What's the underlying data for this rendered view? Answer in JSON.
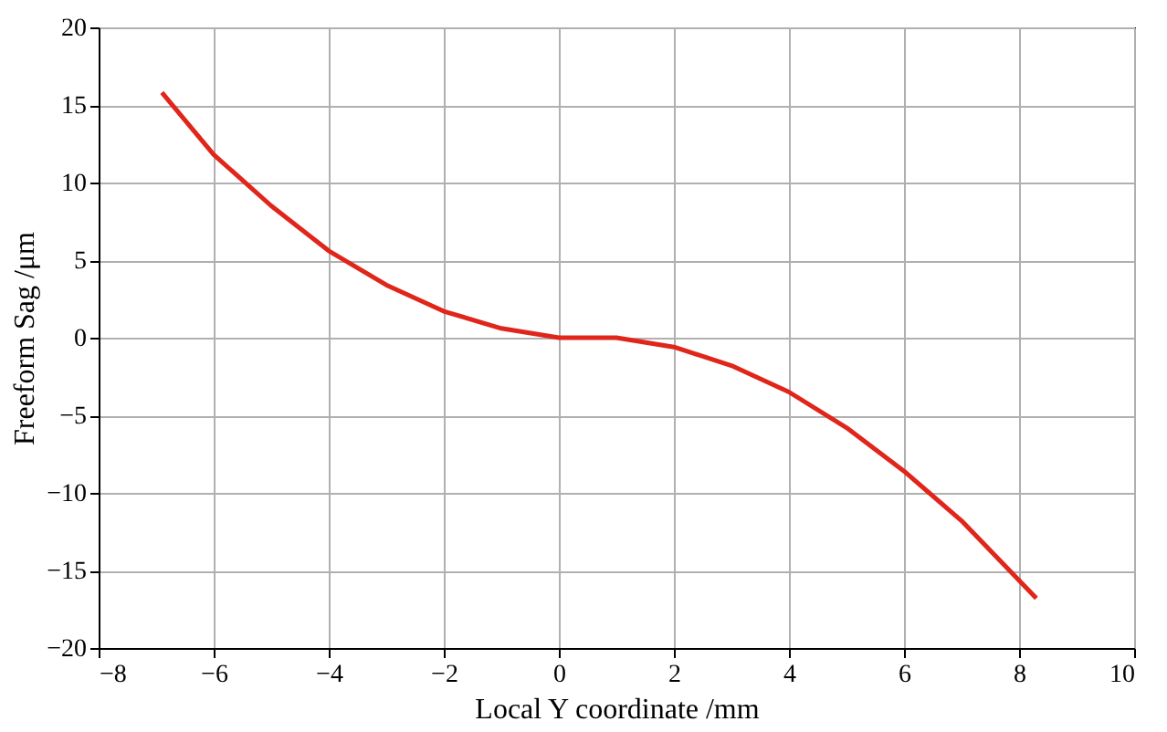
{
  "chart_data": {
    "type": "line",
    "xlabel": "Local Y coordinate /mm",
    "ylabel": "Freeform Sag /μm",
    "x": [
      -6.9,
      -6,
      -5,
      -4,
      -3,
      -2,
      -1,
      0,
      1,
      2,
      3,
      4,
      5,
      6,
      7,
      8.3
    ],
    "series": [
      {
        "color": "#e0261b",
        "values": [
          15.8,
          11.8,
          8.5,
          5.6,
          3.4,
          1.7,
          0.6,
          0,
          0,
          -0.6,
          -1.8,
          -3.5,
          -5.8,
          -8.6,
          -11.8,
          -16.8
        ]
      }
    ],
    "xlim": [
      -8,
      10
    ],
    "xticks": [
      -8,
      -6,
      -4,
      -2,
      0,
      2,
      4,
      6,
      8,
      10
    ],
    "ylim": [
      -20,
      20
    ],
    "yticks": [
      -20,
      -15,
      -10,
      -5,
      0,
      5,
      10,
      15,
      20
    ],
    "grid": true,
    "marker": "none",
    "line_style": "solid"
  }
}
